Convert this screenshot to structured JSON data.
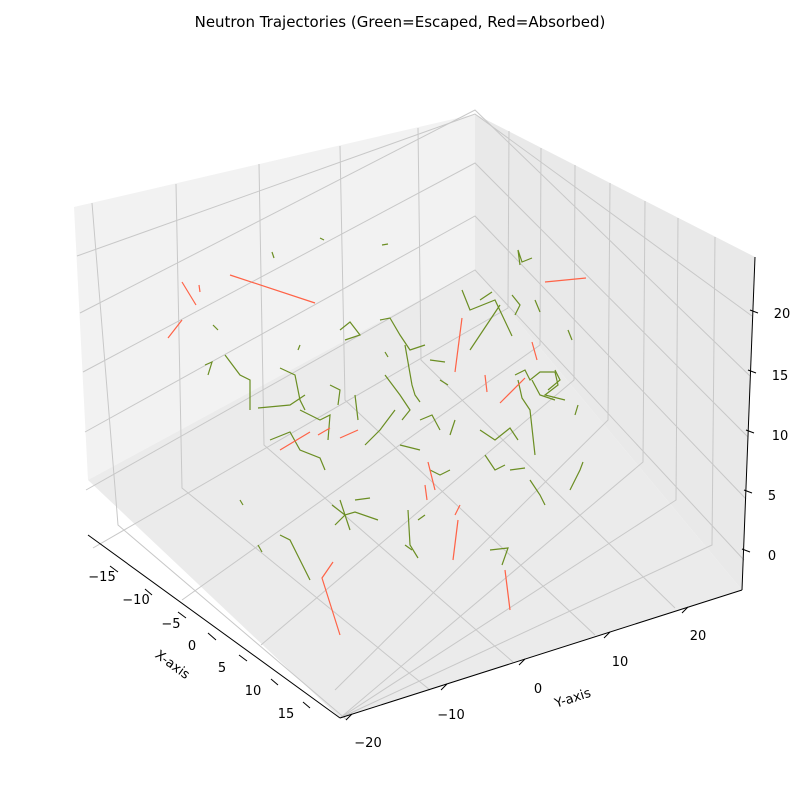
{
  "chart_data": {
    "type": "line3d",
    "title": "Neutron Trajectories (Green=Escaped, Red=Absorbed)",
    "xlabel": "X-axis",
    "ylabel": "Y-axis",
    "zlabel": "",
    "xlim": [
      -17,
      17
    ],
    "ylim": [
      -22,
      25
    ],
    "zlim": [
      -3,
      23
    ],
    "x_ticks": [
      -15,
      -10,
      -5,
      0,
      5,
      10,
      15
    ],
    "y_ticks": [
      -20,
      -10,
      0,
      10,
      20
    ],
    "z_ticks": [
      0,
      5,
      10,
      15,
      20
    ],
    "grid": true,
    "colors": {
      "escaped": "#6b8e23",
      "absorbed": "#ff6347",
      "pane": "#f2f2f2",
      "grid": "#c8c8c8"
    },
    "series": [
      {
        "name": "Escaped",
        "color": "#6b8e23",
        "segments": [
          [
            [
              520,
              265
            ],
            [
              518,
              250
            ],
            [
              522,
              262
            ],
            [
              532,
              258
            ]
          ],
          [
            [
              480,
              300
            ],
            [
              492,
              292
            ]
          ],
          [
            [
              462,
              290
            ],
            [
              470,
              310
            ],
            [
              495,
              300
            ],
            [
              512,
              336
            ]
          ],
          [
            [
              470,
              350
            ],
            [
              500,
              305
            ]
          ],
          [
            [
              380,
              320
            ],
            [
              390,
              318
            ],
            [
              400,
              335
            ],
            [
              410,
              350
            ],
            [
              425,
              345
            ]
          ],
          [
            [
              340,
              330
            ],
            [
              350,
              322
            ],
            [
              360,
              335
            ],
            [
              345,
              340
            ]
          ],
          [
            [
              300,
              345
            ],
            [
              298,
              350
            ]
          ],
          [
            [
              225,
              355
            ],
            [
              240,
              375
            ],
            [
              250,
              380
            ],
            [
              250,
              410
            ]
          ],
          [
            [
              205,
              365
            ],
            [
              212,
              362
            ],
            [
              208,
              375
            ]
          ],
          [
            [
              258,
              408
            ],
            [
              290,
              405
            ],
            [
              305,
              395
            ]
          ],
          [
            [
              280,
              368
            ],
            [
              295,
              375
            ],
            [
              300,
              400
            ],
            [
              305,
              410
            ]
          ],
          [
            [
              300,
              410
            ],
            [
              320,
              420
            ],
            [
              330,
              415
            ],
            [
              328,
              440
            ]
          ],
          [
            [
              270,
              440
            ],
            [
              290,
              432
            ],
            [
              300,
              450
            ],
            [
              320,
              458
            ],
            [
              325,
              470
            ]
          ],
          [
            [
              330,
              385
            ],
            [
              340,
              390
            ],
            [
              338,
              405
            ]
          ],
          [
            [
              355,
              395
            ],
            [
              358,
              420
            ]
          ],
          [
            [
              385,
              375
            ],
            [
              400,
              395
            ],
            [
              410,
              410
            ],
            [
              402,
              420
            ]
          ],
          [
            [
              405,
              345
            ],
            [
              412,
              385
            ],
            [
              415,
              395
            ],
            [
              420,
              402
            ]
          ],
          [
            [
              430,
              360
            ],
            [
              445,
              362
            ]
          ],
          [
            [
              440,
              380
            ],
            [
              448,
              385
            ]
          ],
          [
            [
              420,
              420
            ],
            [
              432,
              415
            ],
            [
              440,
              430
            ]
          ],
          [
            [
              455,
              420
            ],
            [
              450,
              435
            ]
          ],
          [
            [
              365,
              445
            ],
            [
              380,
              430
            ],
            [
              395,
              410
            ]
          ],
          [
            [
              400,
              445
            ],
            [
              420,
              450
            ]
          ],
          [
            [
              430,
              470
            ],
            [
              440,
              475
            ],
            [
              450,
              470
            ]
          ],
          [
            [
              480,
              430
            ],
            [
              495,
              440
            ],
            [
              510,
              428
            ],
            [
              518,
              440
            ]
          ],
          [
            [
              485,
              455
            ],
            [
              495,
              470
            ],
            [
              505,
              465
            ]
          ],
          [
            [
              510,
              470
            ],
            [
              525,
              468
            ]
          ],
          [
            [
              515,
              375
            ],
            [
              525,
              370
            ],
            [
              530,
              380
            ],
            [
              540,
              372
            ],
            [
              555,
              372
            ],
            [
              558,
              385
            ],
            [
              545,
              395
            ],
            [
              565,
              400
            ]
          ],
          [
            [
              518,
              380
            ],
            [
              522,
              398
            ],
            [
              530,
              410
            ],
            [
              535,
              455
            ]
          ],
          [
            [
              532,
              380
            ],
            [
              540,
              395
            ],
            [
              555,
              400
            ]
          ],
          [
            [
              555,
              370
            ],
            [
              560,
              380
            ],
            [
              548,
              390
            ]
          ],
          [
            [
              568,
              330
            ],
            [
              572,
              340
            ]
          ],
          [
            [
              512,
              295
            ],
            [
              520,
              305
            ],
            [
              515,
              315
            ]
          ],
          [
            [
              535,
              300
            ],
            [
              540,
              312
            ]
          ],
          [
            [
              575,
              415
            ],
            [
              578,
              405
            ]
          ],
          [
            [
              570,
              490
            ],
            [
              580,
              470
            ],
            [
              583,
              462
            ]
          ],
          [
            [
              530,
              480
            ],
            [
              540,
              495
            ],
            [
              545,
              505
            ]
          ],
          [
            [
              240,
              500
            ],
            [
              243,
              505
            ]
          ],
          [
            [
              280,
              535
            ],
            [
              290,
              540
            ],
            [
              300,
              560
            ],
            [
              310,
              580
            ]
          ],
          [
            [
              258,
              545
            ],
            [
              262,
              552
            ]
          ],
          [
            [
              332,
              505
            ],
            [
              345,
              515
            ],
            [
              355,
              512
            ],
            [
              378,
              520
            ]
          ],
          [
            [
              340,
              500
            ],
            [
              350,
              530
            ]
          ],
          [
            [
              345,
              515
            ],
            [
              335,
              525
            ]
          ],
          [
            [
              355,
              500
            ],
            [
              370,
              498
            ]
          ],
          [
            [
              408,
              510
            ],
            [
              410,
              545
            ],
            [
              418,
              558
            ]
          ],
          [
            [
              405,
              545
            ],
            [
              412,
              550
            ]
          ],
          [
            [
              418,
              520
            ],
            [
              425,
              515
            ]
          ],
          [
            [
              490,
              550
            ],
            [
              508,
              548
            ],
            [
              502,
              565
            ]
          ],
          [
            [
              382,
              245
            ],
            [
              388,
              244
            ]
          ],
          [
            [
              320,
              238
            ],
            [
              324,
              240
            ]
          ],
          [
            [
              272,
              252
            ],
            [
              274,
              258
            ]
          ],
          [
            [
              213,
              325
            ],
            [
              218,
              330
            ]
          ],
          [
            [
              385,
              352
            ],
            [
              388,
              357
            ]
          ]
        ]
      },
      {
        "name": "Absorbed",
        "color": "#ff6347",
        "segments": [
          [
            [
              230,
              275
            ],
            [
              315,
              303
            ]
          ],
          [
            [
              182,
              282
            ],
            [
              196,
              305
            ]
          ],
          [
            [
              168,
              338
            ],
            [
              182,
              320
            ]
          ],
          [
            [
              199,
              285
            ],
            [
              200,
              292
            ]
          ],
          [
            [
              545,
              282
            ],
            [
              586,
              278
            ]
          ],
          [
            [
              462,
              318
            ],
            [
              455,
              372
            ]
          ],
          [
            [
              280,
              450
            ],
            [
              310,
              432
            ]
          ],
          [
            [
              318,
              435
            ],
            [
              330,
              428
            ]
          ],
          [
            [
              340,
              438
            ],
            [
              358,
              430
            ]
          ],
          [
            [
              500,
              403
            ],
            [
              525,
              378
            ]
          ],
          [
            [
              485,
              375
            ],
            [
              487,
              392
            ]
          ],
          [
            [
              532,
              342
            ],
            [
              537,
              360
            ]
          ],
          [
            [
              428,
              462
            ],
            [
              435,
              490
            ]
          ],
          [
            [
              455,
              515
            ],
            [
              460,
              505
            ]
          ],
          [
            [
              453,
              560
            ],
            [
              458,
              520
            ]
          ],
          [
            [
              505,
              570
            ],
            [
              510,
              610
            ]
          ],
          [
            [
              333,
              562
            ],
            [
              322,
              578
            ],
            [
              340,
              635
            ]
          ],
          [
            [
              425,
              485
            ],
            [
              427,
              500
            ]
          ]
        ]
      }
    ]
  }
}
